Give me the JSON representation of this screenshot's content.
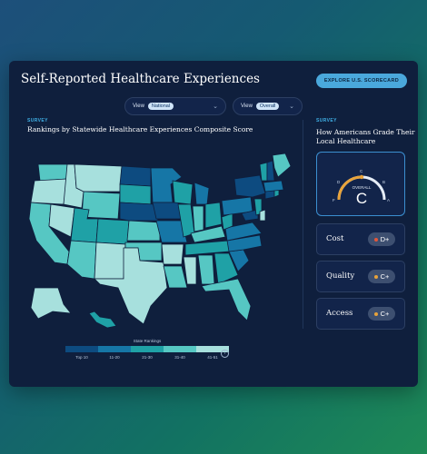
{
  "header": {
    "title": "Self-Reported Healthcare Experiences",
    "explore_label": "EXPLORE U.S. SCORECARD"
  },
  "filters": [
    {
      "prefix": "View",
      "value": "National"
    },
    {
      "prefix": "View",
      "value": "Overall"
    }
  ],
  "map_section": {
    "tag": "SURVEY",
    "title": "Rankings by Statewide Healthcare Experiences Composite Score",
    "legend": {
      "title": "State Rankings",
      "bins": [
        "Top 10",
        "11-20",
        "21-30",
        "31-40",
        "41-51"
      ],
      "colors": [
        "#0d4b80",
        "#1676a6",
        "#1fa1a6",
        "#56c7c3",
        "#a7e0dd"
      ]
    }
  },
  "grade_section": {
    "tag": "SURVEY",
    "title_line1": "How Americans Grade Their",
    "title_line2": "Local Healthcare",
    "overall": {
      "label": "OVERALL",
      "grade": "C",
      "scale": [
        "F",
        "D",
        "C",
        "B",
        "A"
      ],
      "accent": "#e8a33a"
    },
    "rows": [
      {
        "label": "Cost",
        "grade": "D+",
        "dot_color": "#e4573a"
      },
      {
        "label": "Quality",
        "grade": "C+",
        "dot_color": "#e8a33a"
      },
      {
        "label": "Access",
        "grade": "C+",
        "dot_color": "#e8a33a"
      }
    ]
  }
}
